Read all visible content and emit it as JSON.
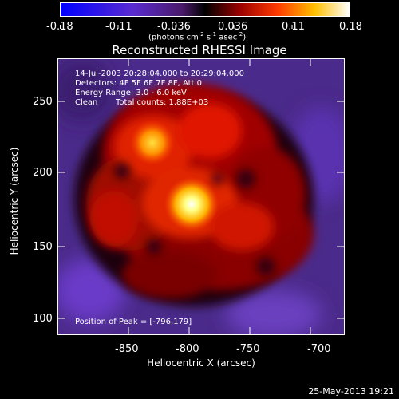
{
  "colorbar": {
    "ticks": [
      "-0.18",
      "-0.11",
      "-0.036",
      "0.036",
      "0.11",
      "0.18"
    ],
    "units": "(photons cm",
    "units_exp1": "-2",
    "units_mid": " s",
    "units_exp2": "-1",
    "units_mid2": " asec",
    "units_exp3": "-2",
    "units_end": ")"
  },
  "title": "Reconstructed RHESSI Image",
  "info": {
    "time_range": "14-Jul-2003 20:28:04.000 to 20:29:04.000",
    "detectors": "Detectors: 4F 5F 6F 7F 8F, Att 0",
    "energy": "Energy Range: 3.0 - 6.0 keV",
    "algorithm": "Clean",
    "counts": "Total counts: 1.88E+03",
    "peak": "Position of Peak = [-796,179]"
  },
  "axes": {
    "xlabel": "Heliocentric X (arcsec)",
    "ylabel": "Heliocentric Y (arcsec)",
    "xticks": [
      "-850",
      "-800",
      "-750",
      "-700"
    ],
    "yticks": [
      "250",
      "200",
      "150",
      "100"
    ]
  },
  "datestamp": "25-May-2013 19:21"
}
